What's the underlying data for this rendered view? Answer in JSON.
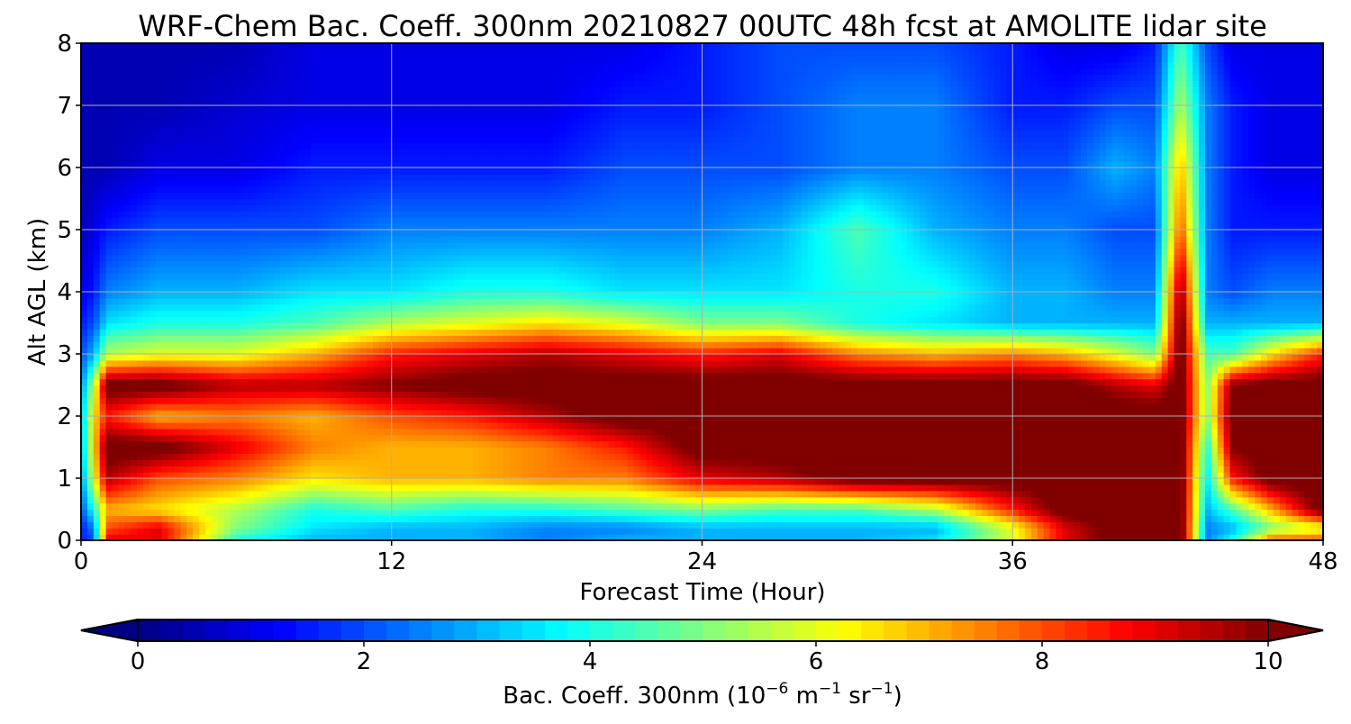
{
  "chart_data": {
    "type": "heatmap",
    "title": "WRF-Chem Bac. Coeff. 300nm  20210827 00UTC 48h fcst at AMOLITE lidar site",
    "xlabel": "Forecast Time (Hour)",
    "ylabel": "Alt AGL (km)",
    "xlim": [
      0,
      48
    ],
    "ylim": [
      0,
      8
    ],
    "xticks": [
      "0",
      "12",
      "24",
      "36",
      "48"
    ],
    "yticks": [
      "0",
      "1",
      "2",
      "3",
      "4",
      "5",
      "6",
      "7",
      "8"
    ],
    "grid": true,
    "colormap": "jet",
    "colorbar": {
      "orientation": "horizontal",
      "position": "bottom",
      "extend": "both",
      "range": [
        0,
        10
      ],
      "ticks": [
        "0",
        "2",
        "4",
        "6",
        "8",
        "10"
      ],
      "label_main": "Bac. Coeff. 300nm  (10",
      "label_exp1": "−6",
      "label_mid": " m",
      "label_exp2": "−1",
      "label_tail": " sr",
      "label_exp3": "−1",
      "label_close": ")"
    },
    "x": [
      0,
      0.5,
      1,
      3,
      6,
      9,
      12,
      15,
      18,
      21,
      24,
      27,
      30,
      33,
      36,
      38,
      40,
      41.5,
      42.5,
      43.5,
      44.5,
      46,
      48
    ],
    "y": [
      0,
      0.2,
      0.5,
      1,
      1.5,
      2,
      2.5,
      3,
      3.5,
      4,
      5,
      6,
      7,
      8
    ],
    "z": [
      [
        1.5,
        2.0,
        9.0,
        9.0,
        4.0,
        3.0,
        3.0,
        3.0,
        2.5,
        3.0,
        3.0,
        3.0,
        3.0,
        3.5,
        6.0,
        9.0,
        10.5,
        10.5,
        10.5,
        2.5,
        4.0,
        8.0,
        8.0
      ],
      [
        1.5,
        2.5,
        8.0,
        9.0,
        5.0,
        3.5,
        3.0,
        3.0,
        2.5,
        2.5,
        3.0,
        3.0,
        3.0,
        3.0,
        6.0,
        9.0,
        10.5,
        10.5,
        10.5,
        2.5,
        3.0,
        5.0,
        6.0
      ],
      [
        2.0,
        4.0,
        7.0,
        6.5,
        5.5,
        4.0,
        4.5,
        4.0,
        4.0,
        4.5,
        5.0,
        4.5,
        4.5,
        5.5,
        8.5,
        10.5,
        10.5,
        10.5,
        10.5,
        3.0,
        4.5,
        7.0,
        10.5
      ],
      [
        2.5,
        6.0,
        9.5,
        8.0,
        7.5,
        6.5,
        7.0,
        7.0,
        7.5,
        7.5,
        9.0,
        9.5,
        10.5,
        10.5,
        10.5,
        10.5,
        10.5,
        10.5,
        10.5,
        3.5,
        8.5,
        10.5,
        10.5
      ],
      [
        3.0,
        6.5,
        10.5,
        10.5,
        9.0,
        7.5,
        7.0,
        7.0,
        7.5,
        8.5,
        10.5,
        10.5,
        10.5,
        10.5,
        10.5,
        10.5,
        10.5,
        10.5,
        10.5,
        4.0,
        10.0,
        10.5,
        10.5
      ],
      [
        3.0,
        6.5,
        8.5,
        7.0,
        7.5,
        7.0,
        8.0,
        8.5,
        9.5,
        10.5,
        10.5,
        10.5,
        10.5,
        10.5,
        10.5,
        10.5,
        10.5,
        10.5,
        10.5,
        5.0,
        10.5,
        10.5,
        10.5
      ],
      [
        2.5,
        5.5,
        10.5,
        10.5,
        9.5,
        9.5,
        10.0,
        10.5,
        10.5,
        10.5,
        10.5,
        10.5,
        10.5,
        10.5,
        10.5,
        10.5,
        9.5,
        9.0,
        10.5,
        5.0,
        10.0,
        10.5,
        10.5
      ],
      [
        2.0,
        3.0,
        5.5,
        6.0,
        6.0,
        7.0,
        8.5,
        9.0,
        9.5,
        9.0,
        8.5,
        9.0,
        7.5,
        7.0,
        7.5,
        7.0,
        6.0,
        5.0,
        10.5,
        4.5,
        4.5,
        6.5,
        8.5
      ],
      [
        1.5,
        2.0,
        3.5,
        4.0,
        4.0,
        4.5,
        5.5,
        6.0,
        6.5,
        6.0,
        5.0,
        5.0,
        4.0,
        3.5,
        3.0,
        3.0,
        3.0,
        3.0,
        10.5,
        3.0,
        3.0,
        3.0,
        3.0
      ],
      [
        1.0,
        1.5,
        2.5,
        3.0,
        3.0,
        3.5,
        3.5,
        4.0,
        4.0,
        3.5,
        3.5,
        3.5,
        4.0,
        4.0,
        3.0,
        3.0,
        2.5,
        2.5,
        10.0,
        2.5,
        2.0,
        2.5,
        2.5
      ],
      [
        0.5,
        1.0,
        1.5,
        2.0,
        2.0,
        2.0,
        2.5,
        2.5,
        2.5,
        2.5,
        2.5,
        3.0,
        4.5,
        3.0,
        2.5,
        2.5,
        2.0,
        2.0,
        8.0,
        2.5,
        1.5,
        1.5,
        1.5
      ],
      [
        0.5,
        0.5,
        0.5,
        1.0,
        1.0,
        1.5,
        1.5,
        1.5,
        1.5,
        2.0,
        2.0,
        2.0,
        2.5,
        2.5,
        2.0,
        2.0,
        3.0,
        2.5,
        7.0,
        2.5,
        1.5,
        1.0,
        1.0
      ],
      [
        0.5,
        0.5,
        0.5,
        0.5,
        0.8,
        1.0,
        1.0,
        1.0,
        1.0,
        1.5,
        1.5,
        2.0,
        2.5,
        2.5,
        1.5,
        1.5,
        2.0,
        2.0,
        5.5,
        2.5,
        1.5,
        1.0,
        1.0
      ],
      [
        0.5,
        0.5,
        0.5,
        0.5,
        0.5,
        1.0,
        1.0,
        1.0,
        1.0,
        1.0,
        1.5,
        2.0,
        2.0,
        2.0,
        1.5,
        1.0,
        1.0,
        1.5,
        4.5,
        2.0,
        1.0,
        1.0,
        1.0
      ]
    ]
  }
}
